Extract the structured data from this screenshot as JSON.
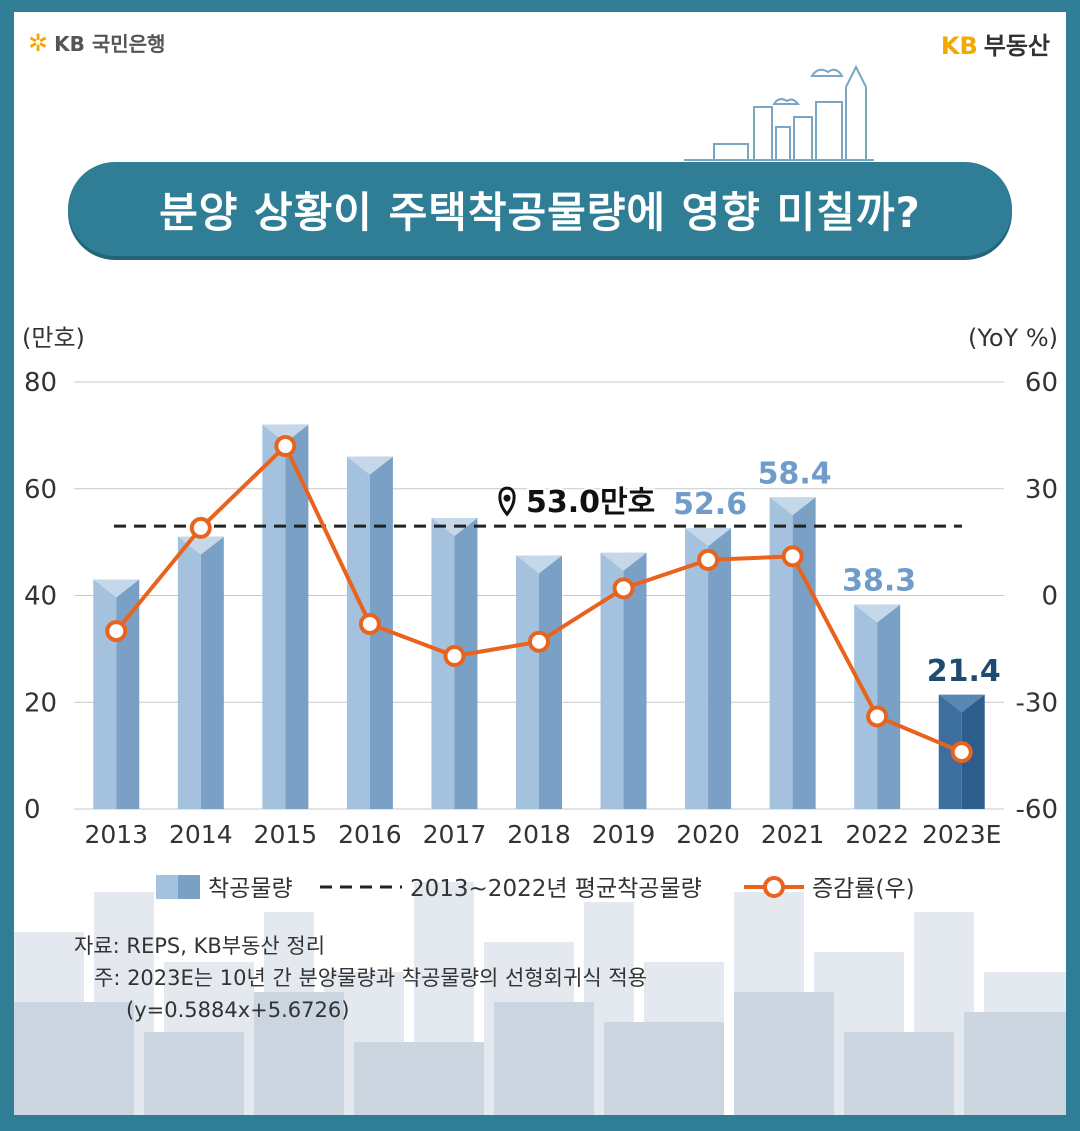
{
  "header": {
    "bank_logo": "KB 국민은행",
    "brand_logo_kb": "KB",
    "brand_logo_text": "부동산",
    "title": "분양 상황이 주택착공물량에 영향 미칠까?"
  },
  "chart_data": {
    "type": "bar",
    "categories": [
      "2013",
      "2014",
      "2015",
      "2016",
      "2017",
      "2018",
      "2019",
      "2020",
      "2021",
      "2022",
      "2023E"
    ],
    "series": [
      {
        "name": "착공물량",
        "type": "bar",
        "axis": "left",
        "values": [
          43,
          51,
          72,
          66,
          54.5,
          47.5,
          48,
          52.6,
          58.4,
          38.3,
          21.4
        ],
        "data_labels": [
          "",
          "",
          "",
          "",
          "",
          "",
          "",
          "52.6",
          "58.4",
          "38.3",
          "21.4"
        ],
        "color": "#8fb3d6",
        "highlight_color": "#2c5d8c"
      },
      {
        "name": "2013~2022년 평균착공물량",
        "type": "hline",
        "axis": "left",
        "value": 53.0,
        "label": "53.0만호"
      },
      {
        "name": "증감률(우)",
        "type": "line",
        "axis": "right",
        "values": [
          -10,
          19,
          42,
          -8,
          -17,
          -13,
          2,
          10,
          11,
          -34,
          -44
        ],
        "color": "#e8641e"
      }
    ],
    "ylabel": "(만호)",
    "y2label": "(YoY %)",
    "ylim": [
      0,
      80
    ],
    "y2lim": [
      -60,
      60
    ],
    "yticks": [
      "0",
      "20",
      "40",
      "60",
      "80"
    ],
    "y2ticks": [
      "-60",
      "-30",
      "0",
      "30",
      "60"
    ],
    "grid": true,
    "legend": "bottom"
  },
  "notes": {
    "source": "자료: REPS, KB부동산 정리",
    "note": "주: 2023E는 10년 간 분양물량과 착공물량의 선형회귀식 적용",
    "formula": "(y=0.5884x+5.6726)"
  }
}
